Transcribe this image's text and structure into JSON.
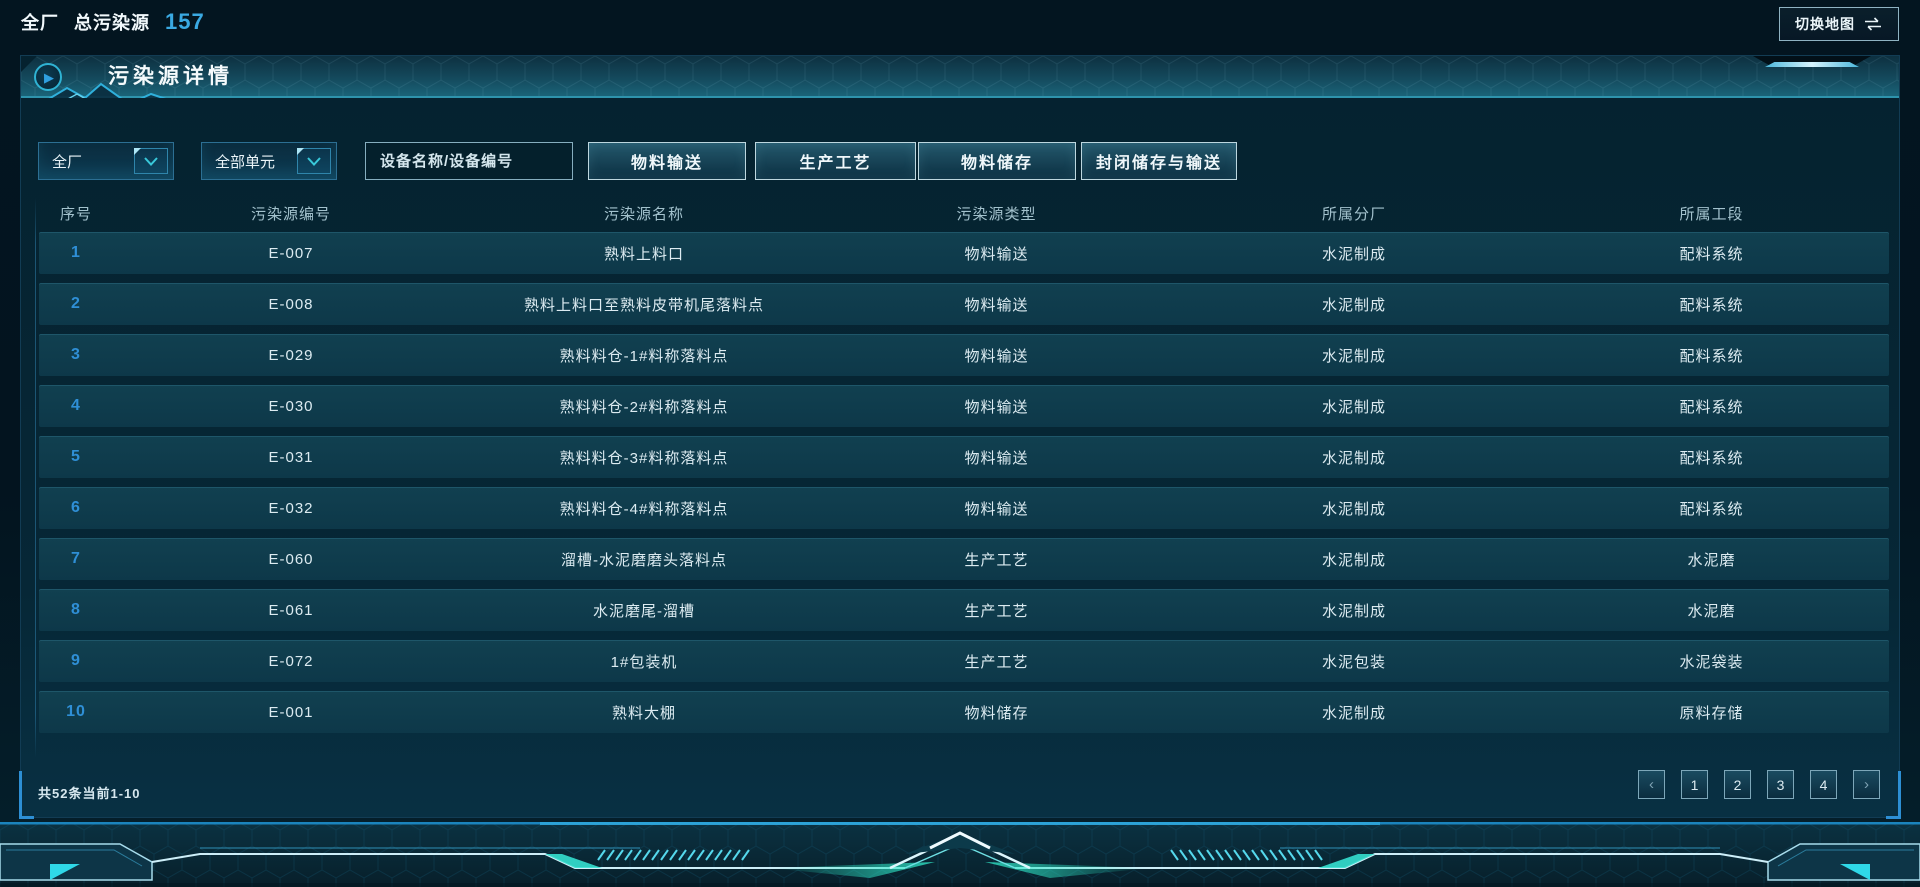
{
  "top_bar": {
    "scope": "全厂",
    "total_label": "总污染源",
    "total_value": "157",
    "switch_map_label": "切换地图",
    "swap_icon": "swap-arrows"
  },
  "panel": {
    "title": "污染源详情",
    "play_icon": "▶",
    "filters": {
      "plant_dropdown_value": "全厂",
      "unit_dropdown_value": "全部单元",
      "search_placeholder": "设备名称/设备编号",
      "search_icon": "magnifier",
      "chevron_icon": "chevron-down",
      "category_buttons": [
        "物料输送",
        "生产工艺",
        "物料储存",
        "封闭储存与输送"
      ]
    },
    "table": {
      "columns": [
        "序号",
        "污染源编号",
        "污染源名称",
        "污染源类型",
        "所属分厂",
        "所属工段"
      ],
      "rows": [
        [
          "1",
          "E-007",
          "熟料上料口",
          "物料输送",
          "水泥制成",
          "配料系统"
        ],
        [
          "2",
          "E-008",
          "熟料上料口至熟料皮带机尾落料点",
          "物料输送",
          "水泥制成",
          "配料系统"
        ],
        [
          "3",
          "E-029",
          "熟料料仓-1#料称落料点",
          "物料输送",
          "水泥制成",
          "配料系统"
        ],
        [
          "4",
          "E-030",
          "熟料料仓-2#料称落料点",
          "物料输送",
          "水泥制成",
          "配料系统"
        ],
        [
          "5",
          "E-031",
          "熟料料仓-3#料称落料点",
          "物料输送",
          "水泥制成",
          "配料系统"
        ],
        [
          "6",
          "E-032",
          "熟料料仓-4#料称落料点",
          "物料输送",
          "水泥制成",
          "配料系统"
        ],
        [
          "7",
          "E-060",
          "溜槽-水泥磨磨头落料点",
          "生产工艺",
          "水泥制成",
          "水泥磨"
        ],
        [
          "8",
          "E-061",
          "水泥磨尾-溜槽",
          "生产工艺",
          "水泥制成",
          "水泥磨"
        ],
        [
          "9",
          "E-072",
          "1#包装机",
          "生产工艺",
          "水泥包装",
          "水泥袋装"
        ],
        [
          "10",
          "E-001",
          "熟料大棚",
          "物料储存",
          "水泥制成",
          "原料存储"
        ]
      ]
    },
    "pagination": {
      "summary": "共52条当前1-10",
      "prev_icon": "‹",
      "next_icon": "›",
      "pages": [
        "1",
        "2",
        "3",
        "4"
      ]
    }
  },
  "colors": {
    "accent_cyan": "#3aa9e2",
    "row_index_blue": "#2f8fd6",
    "header_band_teal": "#1a6378",
    "row_background": "#0e3b4d",
    "page_background": "#03141f",
    "glow_cyan": "#35e0e8"
  }
}
